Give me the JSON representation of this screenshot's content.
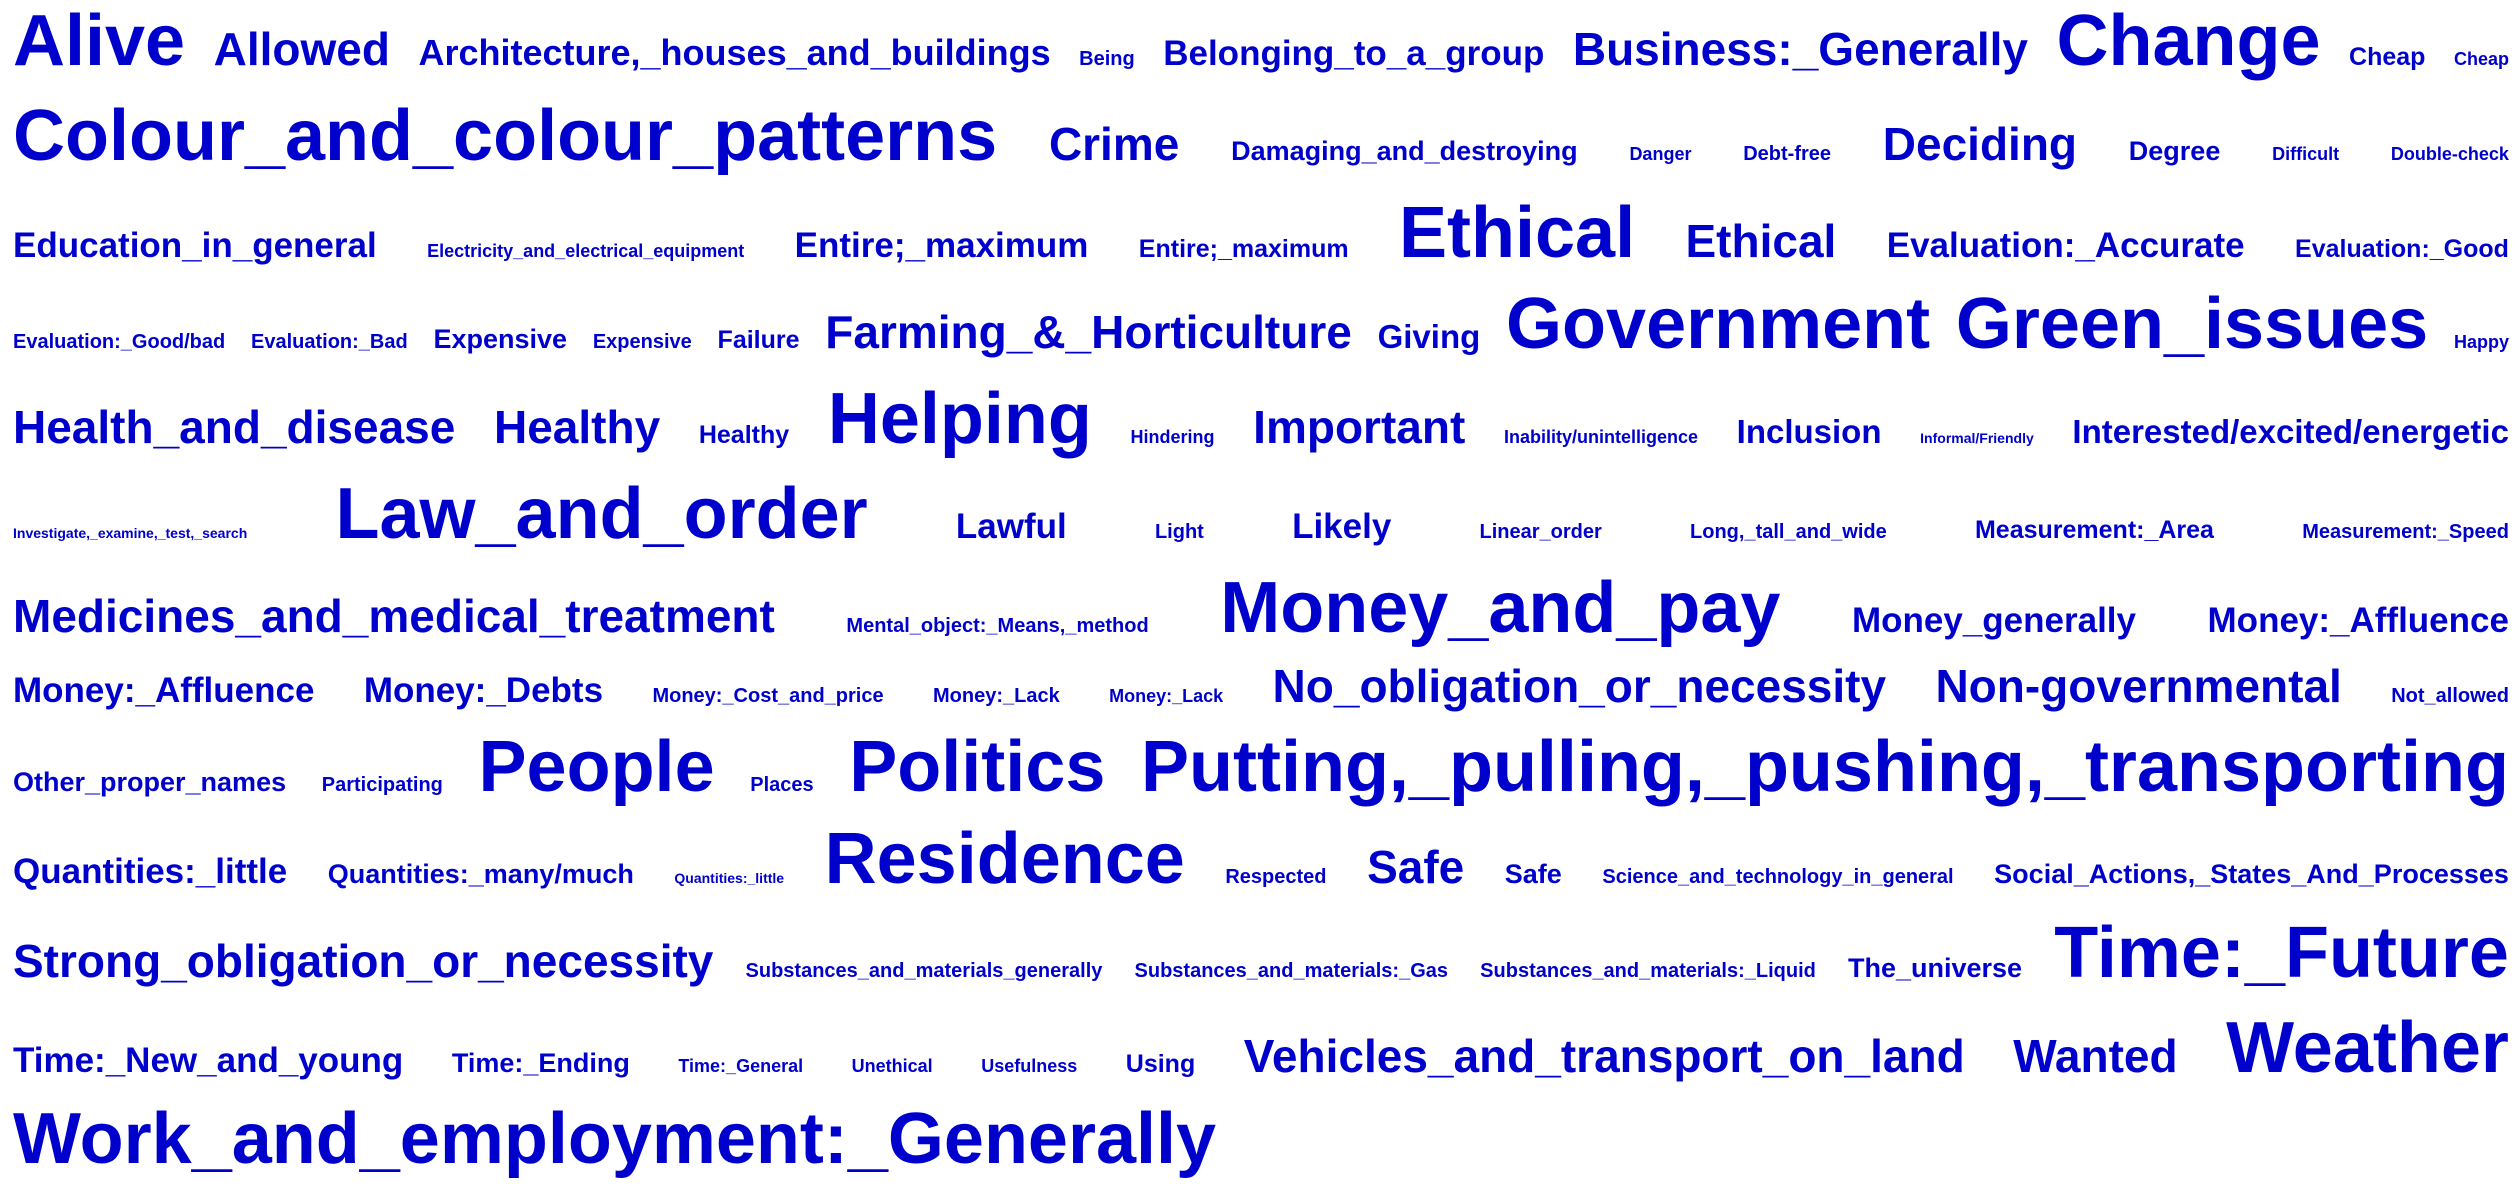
{
  "color": "#0000cc",
  "rows": [
    {
      "baseline": 70,
      "words": [
        [
          "Alive",
          72
        ],
        [
          "Allowed",
          46
        ],
        [
          "Architecture,_houses_and_buildings",
          36
        ],
        [
          "Being",
          20
        ],
        [
          "Belonging_to_a_group",
          35
        ],
        [
          "Business:_Generally",
          46
        ],
        [
          "Change",
          72
        ],
        [
          "Cheap",
          25
        ],
        [
          "Cheap",
          18
        ]
      ]
    },
    {
      "baseline": 165,
      "words": [
        [
          "Colour_and_colour_patterns",
          72
        ],
        [
          "Crime",
          46
        ],
        [
          "Damaging_and_destroying",
          27
        ],
        [
          "Danger",
          18
        ],
        [
          "Debt-free",
          20
        ],
        [
          "Deciding",
          46
        ],
        [
          "Degree",
          27
        ],
        [
          "Difficult",
          18
        ],
        [
          "Double-check",
          18
        ]
      ]
    },
    {
      "baseline": 262,
      "words": [
        [
          "Education_in_general",
          35
        ],
        [
          "Electricity_and_electrical_equipment",
          18
        ],
        [
          "Entire;_maximum",
          35
        ],
        [
          "Entire;_maximum",
          25
        ],
        [
          "Ethical",
          72
        ],
        [
          "Ethical",
          46
        ],
        [
          "Evaluation:_Accurate",
          35
        ],
        [
          "Evaluation:_Good",
          25
        ]
      ]
    },
    {
      "baseline": 353,
      "words": [
        [
          "Evaluation:_Good/bad",
          20
        ],
        [
          "Evaluation:_Bad",
          20
        ],
        [
          "Expensive",
          27
        ],
        [
          "Expensive",
          20
        ],
        [
          "Failure",
          25
        ],
        [
          "Farming_&_Horticulture",
          46
        ],
        [
          "Giving",
          33
        ],
        [
          "Government",
          72
        ],
        [
          "Green_issues",
          72
        ],
        [
          "Happy",
          18
        ]
      ]
    },
    {
      "baseline": 448,
      "words": [
        [
          "Health_and_disease",
          46
        ],
        [
          "Healthy",
          46
        ],
        [
          "Healthy",
          25
        ],
        [
          "Helping",
          72
        ],
        [
          "Hindering",
          18
        ],
        [
          "Important",
          46
        ],
        [
          "Inability/unintelligence",
          18
        ],
        [
          "Inclusion",
          33
        ],
        [
          "Informal/Friendly",
          14
        ],
        [
          "Interested/excited/energetic",
          33
        ]
      ]
    },
    {
      "baseline": 543,
      "words": [
        [
          "Investigate,_examine,_test,_search",
          14
        ],
        [
          "Law_and_order",
          72
        ],
        [
          "Lawful",
          35
        ],
        [
          "Light",
          20
        ],
        [
          "Likely",
          35
        ],
        [
          "Linear_order",
          20
        ],
        [
          "Long,_tall_and_wide",
          20
        ],
        [
          "Measurement:_Area",
          25
        ],
        [
          "Measurement:_Speed",
          20
        ]
      ]
    },
    {
      "baseline": 637,
      "words": [
        [
          "Medicines_and_medical_treatment",
          46
        ],
        [
          "Mental_object:_Means,_method",
          20
        ],
        [
          "Money_and_pay",
          72
        ],
        [
          "Money_generally",
          35
        ],
        [
          "Money:_Affluence",
          35
        ]
      ]
    },
    {
      "baseline": 704,
      "words": [
        [
          "Money:_Affluence",
          35
        ],
        [
          "Money:_Debts",
          35
        ],
        [
          "Money:_Cost_and_price",
          20
        ],
        [
          "Money:_Lack",
          20
        ],
        [
          "Money:_Lack",
          18
        ],
        [
          "No_obligation_or_necessity",
          46
        ],
        [
          "Non-governmental",
          46
        ],
        [
          "Not_allowed",
          20
        ]
      ]
    },
    {
      "baseline": 796,
      "words": [
        [
          "Other_proper_names",
          27
        ],
        [
          "Participating",
          20
        ],
        [
          "People",
          72
        ],
        [
          "Places",
          20
        ],
        [
          "Politics",
          72
        ],
        [
          "Putting,_pulling,_pushing,_transporting",
          72
        ]
      ]
    },
    {
      "baseline": 888,
      "words": [
        [
          "Quantities:_little",
          35
        ],
        [
          "Quantities:_many/much",
          27
        ],
        [
          "Quantities:_little",
          14
        ],
        [
          "Residence",
          72
        ],
        [
          "Respected",
          20
        ],
        [
          "Safe",
          46
        ],
        [
          "Safe",
          27
        ],
        [
          "Science_and_technology_in_general",
          20
        ],
        [
          "Social_Actions,_States_And_Processes",
          27
        ]
      ]
    },
    {
      "baseline": 982,
      "words": [
        [
          "Strong_obligation_or_necessity",
          46
        ],
        [
          "Substances_and_materials_generally",
          20
        ],
        [
          "Substances_and_materials:_Gas",
          20
        ],
        [
          "Substances_and_materials:_Liquid",
          20
        ],
        [
          "The_universe",
          27
        ],
        [
          "Time:_Future",
          72
        ]
      ]
    },
    {
      "baseline": 1077,
      "words": [
        [
          "Time:_New_and_young",
          35
        ],
        [
          "Time:_Ending",
          27
        ],
        [
          "Time:_General",
          18
        ],
        [
          "Unethical",
          18
        ],
        [
          "Usefulness",
          18
        ],
        [
          "Using",
          25
        ],
        [
          "Vehicles_and_transport_on_land",
          46
        ],
        [
          "Wanted",
          46
        ],
        [
          "Weather",
          72
        ]
      ]
    },
    {
      "baseline": 1168,
      "align": "left",
      "words": [
        [
          "Work_and_employment:_Generally",
          72
        ]
      ]
    }
  ]
}
